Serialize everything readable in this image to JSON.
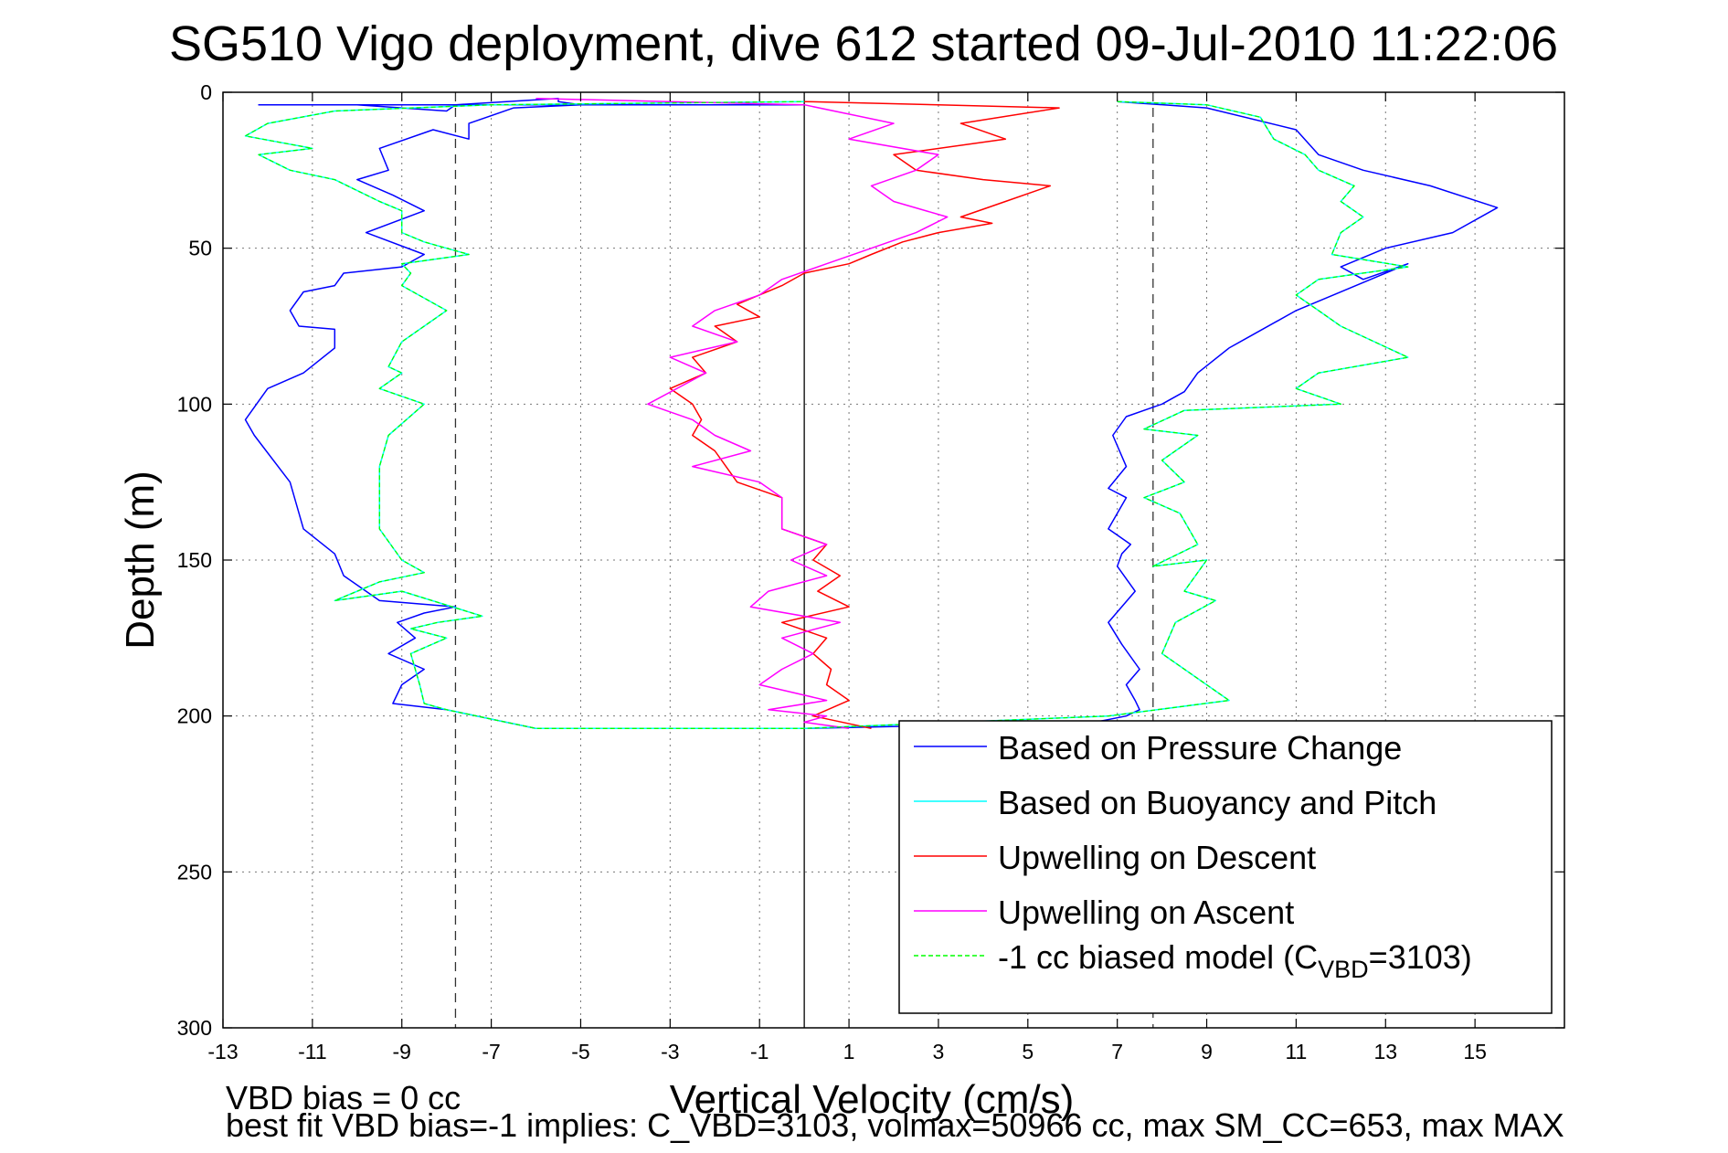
{
  "chart_data": {
    "type": "line",
    "title": "SG510 Vigo deployment, dive 612 started 09-Jul-2010 11:22:06",
    "xlabel": "Vertical Velocity (cm/s)",
    "ylabel": "Depth (m)",
    "xlim": [
      -13,
      17
    ],
    "ylim": [
      0,
      300
    ],
    "y_reversed": true,
    "grid": true,
    "x_ticks": [
      -13,
      -11,
      -9,
      -7,
      -5,
      -3,
      -1,
      1,
      3,
      5,
      7,
      9,
      11,
      13,
      15
    ],
    "y_ticks": [
      0,
      50,
      100,
      150,
      200,
      250,
      300
    ],
    "x_tick_labels": [
      "-13",
      "-11",
      "-9",
      "-7",
      "-5",
      "-3",
      "-1",
      "1",
      "3",
      "5",
      "7",
      "9",
      "11",
      "13",
      "15"
    ],
    "y_tick_labels": [
      "0",
      "50",
      "100",
      "150",
      "200",
      "250",
      "300"
    ],
    "reference_lines": [
      {
        "x": 0,
        "style": "solid"
      },
      {
        "x": -7.8,
        "style": "dashed"
      },
      {
        "x": 7.8,
        "style": "dashed"
      }
    ],
    "legend_placement": "bottom-right",
    "series": [
      {
        "name": "Based on Pressure Change",
        "color": "#0000ff",
        "x": [
          7,
          9,
          11,
          11.5,
          12.5,
          14,
          15.5,
          14.5,
          13,
          12,
          12.5,
          13.5,
          11,
          10,
          9.5,
          8.8,
          8.5,
          8,
          7.2,
          6.9,
          7.2,
          6.8,
          7.2,
          6.8,
          7.3,
          7.1,
          7.0,
          7.4,
          6.8,
          7.1,
          7.5,
          7.2,
          7.4,
          7.5,
          7.2,
          6.5,
          0,
          -6,
          -8,
          -9.2,
          -9.0,
          -8.5,
          -9.3,
          -8.7,
          -9.1,
          -8.5,
          -7.8,
          -9.5,
          -10.3,
          -10.5,
          -11.2,
          -11.5,
          -12.3,
          -12.5,
          -12.0,
          -11.2,
          -10.5,
          -10.5,
          -11.3,
          -11.5,
          -11.2,
          -10.5,
          -10.3,
          -9.0,
          -8.5,
          -9.8,
          -8.5,
          -9.2,
          -10.0,
          -9.3,
          -9.5,
          -8.3,
          -7.5,
          -7.5,
          -6.5,
          -5.0,
          -5.5,
          -5.5,
          -7.8,
          -8.0,
          -9.0,
          -10.0,
          -12.2,
          0
        ],
        "y": [
          3,
          5,
          12,
          20,
          25,
          30,
          37,
          45,
          50,
          56,
          60,
          55,
          70,
          78,
          82,
          90,
          96,
          100,
          104,
          110,
          120,
          127,
          130,
          140,
          145,
          148,
          152,
          160,
          170,
          177,
          185,
          190,
          195,
          198,
          200,
          202,
          204,
          204,
          198,
          196,
          190,
          185,
          180,
          175,
          170,
          167,
          165,
          163,
          155,
          148,
          140,
          125,
          110,
          105,
          95,
          90,
          82,
          76,
          75,
          70,
          64,
          62,
          58,
          56,
          52,
          45,
          38,
          33,
          28,
          25,
          18,
          12,
          15,
          10,
          5,
          4,
          3,
          2,
          4,
          6,
          5,
          4,
          4,
          4
        ]
      },
      {
        "name": "Based on Buoyancy and Pitch",
        "color": "#00ffff",
        "x": [
          7,
          9,
          10.2,
          10.5,
          11.2,
          11.5,
          12.3,
          12.0,
          12.5,
          12.0,
          11.8,
          13.5,
          11.5,
          11.0,
          11.5,
          12.0,
          13.5,
          11.5,
          11.0,
          12.0,
          8.5,
          7.6,
          8.8,
          8.0,
          8.5,
          7.6,
          8.4,
          8.8,
          7.8,
          9.0,
          8.5,
          9.2,
          8.3,
          8.0,
          9.5,
          6.8,
          0,
          -6,
          -8,
          -8.5,
          -8.6,
          -8.8,
          -8.0,
          -8.8,
          -8.2,
          -7.2,
          -9.0,
          -10.5,
          -9.5,
          -8.5,
          -9.0,
          -9.5,
          -9.5,
          -9.5,
          -9.3,
          -8.5,
          -9.5,
          -9.0,
          -9.3,
          -9.0,
          -8.0,
          -9.0,
          -8.8,
          -9.0,
          -7.5,
          -8.5,
          -9.0,
          -9.0,
          -9.5,
          -10.5,
          -11.5,
          -12.2,
          -11.0,
          -12.5,
          -12.0,
          -10.5,
          -7.0,
          0
        ],
        "y": [
          3,
          4,
          8,
          15,
          20,
          25,
          30,
          35,
          40,
          45,
          52,
          56,
          60,
          65,
          70,
          75,
          85,
          90,
          95,
          100,
          102,
          108,
          110,
          118,
          125,
          130,
          135,
          145,
          152,
          150,
          160,
          163,
          170,
          180,
          195,
          200,
          204,
          204,
          198,
          196,
          190,
          180,
          175,
          172,
          170,
          168,
          160,
          163,
          157,
          154,
          150,
          140,
          130,
          120,
          110,
          100,
          95,
          90,
          88,
          80,
          70,
          62,
          58,
          55,
          52,
          48,
          45,
          38,
          35,
          28,
          25,
          20,
          18,
          14,
          10,
          6,
          4,
          3
        ]
      },
      {
        "name": "Upwelling on Descent",
        "color": "#ff0000",
        "x": [
          0,
          3,
          5.7,
          3.5,
          4.5,
          2,
          2.5,
          4,
          5.5,
          4.5,
          3.5,
          4.2,
          3.0,
          2.2,
          1.5,
          1.0,
          0,
          -0.5,
          -1.5,
          -1.0,
          -2.0,
          -1.5,
          -2.5,
          -2.2,
          -3.0,
          -2.5,
          -2.3,
          -2.5,
          -2.0,
          -1.5,
          -0.5,
          -0.5,
          0.5,
          0.2,
          0.8,
          0.3,
          1.0,
          -0.5,
          0.5,
          0.2,
          0.6,
          0.5,
          1.0,
          0.2,
          1.5
        ],
        "y": [
          3,
          4,
          5,
          10,
          15,
          20,
          25,
          28,
          30,
          35,
          40,
          42,
          45,
          48,
          52,
          55,
          58,
          62,
          68,
          72,
          75,
          80,
          85,
          90,
          95,
          100,
          105,
          110,
          115,
          125,
          130,
          140,
          145,
          150,
          155,
          160,
          165,
          170,
          175,
          180,
          185,
          190,
          195,
          200,
          204
        ]
      },
      {
        "name": "Upwelling on Ascent",
        "color": "#ff00ff",
        "x": [
          -6,
          -3,
          0,
          2,
          1,
          3,
          2.5,
          1.5,
          2,
          3.2,
          2.5,
          1.5,
          0.5,
          -0.5,
          -1.0,
          -2.0,
          -2.5,
          -1.5,
          -3.0,
          -2.2,
          -3.5,
          -2.5,
          -2.0,
          -1.2,
          -2.5,
          -1.0,
          -0.5,
          -0.5,
          0.5,
          -0.3,
          0.5,
          -0.8,
          -1.2,
          0.8,
          -0.5,
          0.2,
          -0.5,
          -1.0,
          0.5,
          -0.8,
          0.5,
          0,
          1.0
        ],
        "y": [
          2,
          3,
          4,
          10,
          15,
          20,
          25,
          30,
          35,
          40,
          45,
          50,
          55,
          60,
          65,
          70,
          75,
          80,
          85,
          90,
          100,
          105,
          110,
          115,
          120,
          125,
          130,
          140,
          145,
          150,
          155,
          160,
          165,
          170,
          175,
          180,
          185,
          190,
          195,
          198,
          200,
          202,
          204
        ]
      },
      {
        "name": "-1 cc biased model (C_VBD=3103)",
        "color": "#00ff00",
        "dashed": true,
        "x": [
          7,
          9,
          10.2,
          10.5,
          11.2,
          11.5,
          12.3,
          12.0,
          12.5,
          12.0,
          11.8,
          13.5,
          11.5,
          11.0,
          11.5,
          12.0,
          13.5,
          11.5,
          11.0,
          12.0,
          8.5,
          7.6,
          8.8,
          8.0,
          8.5,
          7.6,
          8.4,
          8.8,
          7.8,
          9.0,
          8.5,
          9.2,
          8.3,
          8.0,
          9.5,
          6.8,
          0,
          -6,
          -8,
          -8.5,
          -8.6,
          -8.8,
          -8.0,
          -8.8,
          -8.2,
          -7.2,
          -9.0,
          -10.5,
          -9.5,
          -8.5,
          -9.0,
          -9.5,
          -9.5,
          -9.5,
          -9.3,
          -8.5,
          -9.5,
          -9.0,
          -9.3,
          -9.0,
          -8.0,
          -9.0,
          -8.8,
          -9.0,
          -7.5,
          -8.5,
          -9.0,
          -9.0,
          -9.5,
          -10.5,
          -11.5,
          -12.2,
          -11.0,
          -12.5,
          -12.0,
          -10.5,
          -7.0,
          0
        ],
        "y": [
          3,
          4,
          8,
          15,
          20,
          25,
          30,
          35,
          40,
          45,
          52,
          56,
          60,
          65,
          70,
          75,
          85,
          90,
          95,
          100,
          102,
          108,
          110,
          118,
          125,
          130,
          135,
          145,
          152,
          150,
          160,
          163,
          170,
          180,
          195,
          200,
          204,
          204,
          198,
          196,
          190,
          180,
          175,
          172,
          170,
          168,
          160,
          163,
          157,
          154,
          150,
          140,
          130,
          120,
          110,
          100,
          95,
          90,
          88,
          80,
          70,
          62,
          58,
          55,
          52,
          48,
          45,
          38,
          35,
          28,
          25,
          20,
          18,
          14,
          10,
          6,
          4,
          3
        ]
      }
    ],
    "legend": [
      {
        "label": "Based on Pressure Change",
        "color": "#0000ff",
        "dashed": false
      },
      {
        "label": "Based on Buoyancy and Pitch",
        "color": "#00ffff",
        "dashed": false
      },
      {
        "label": "Upwelling on Descent",
        "color": "#ff0000",
        "dashed": false
      },
      {
        "label": "Upwelling on Ascent",
        "color": "#ff00ff",
        "dashed": false
      },
      {
        "label_prefix": "-1 cc biased model (C",
        "label_sub": "VBD",
        "label_suffix": "=3103)",
        "color": "#00ff00",
        "dashed": true
      }
    ],
    "annotations": [
      "VBD bias = 0 cc",
      "best fit VBD bias=-1 implies: C_VBD=3103, volmax=50966 cc, max SM_CC=653, max MAX"
    ]
  }
}
